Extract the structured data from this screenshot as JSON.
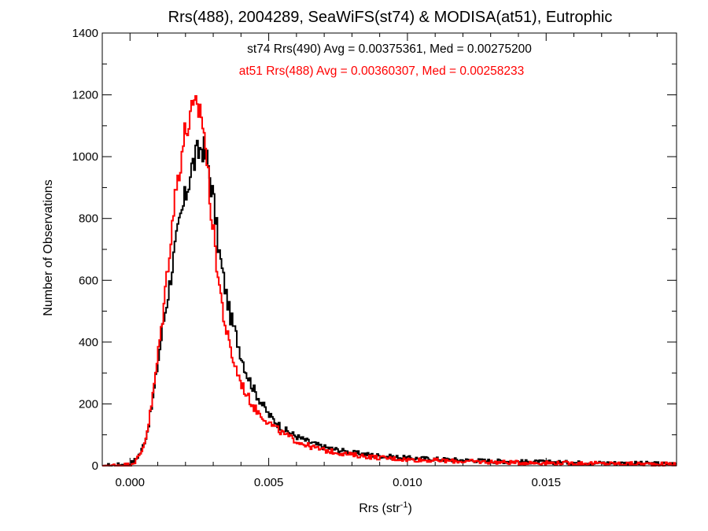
{
  "chart_data": {
    "type": "histogram",
    "title": "Rrs(488), 2004289, SeaWiFS(st74) & MODISA(at51), Eutrophic",
    "xlabel": {
      "base": "Rrs (str",
      "sup": "-1",
      "tail": ")"
    },
    "ylabel": "Number of Observations",
    "xlim": [
      -0.001,
      0.0197
    ],
    "ylim": [
      0,
      1400
    ],
    "x_ticks": [
      0.0,
      0.005,
      0.01,
      0.015
    ],
    "x_tick_labels": [
      "0.000",
      "0.005",
      "0.010",
      "0.015"
    ],
    "y_ticks": [
      0,
      200,
      400,
      600,
      800,
      1000,
      1200,
      1400
    ],
    "y_tick_labels": [
      "0",
      "200",
      "400",
      "600",
      "800",
      "1000",
      "1200",
      "1400"
    ],
    "x_minor_step": 0.001,
    "y_minor_step": 100,
    "grid": false,
    "annotations": [
      {
        "text": "st74 Rrs(490) Avg = 0.00375361, Med = 0.00275200",
        "color": "#000000"
      },
      {
        "text": "at51 Rrs(488) Avg = 0.00360307, Med = 0.00258233",
        "color": "#ff0000"
      }
    ],
    "bin_width": 5e-05,
    "series": [
      {
        "color": "#000000",
        "profile_x": [
          -0.001,
          0.0,
          0.0002,
          0.0004,
          0.0006,
          0.0008,
          0.001,
          0.0012,
          0.0014,
          0.0016,
          0.0018,
          0.002,
          0.0022,
          0.0024,
          0.0025,
          0.0026,
          0.0027,
          0.0028,
          0.003,
          0.0032,
          0.0034,
          0.0036,
          0.0038,
          0.004,
          0.0042,
          0.0045,
          0.005,
          0.0055,
          0.006,
          0.0065,
          0.007,
          0.008,
          0.009,
          0.01,
          0.012,
          0.014,
          0.016,
          0.018,
          0.0197
        ],
        "profile_y": [
          0,
          5,
          20,
          45,
          100,
          200,
          330,
          460,
          570,
          690,
          790,
          870,
          960,
          1000,
          1020,
          1040,
          1010,
          980,
          870,
          700,
          590,
          490,
          430,
          360,
          300,
          240,
          165,
          120,
          95,
          75,
          60,
          42,
          32,
          25,
          18,
          13,
          10,
          8,
          6
        ]
      },
      {
        "color": "#ff0000",
        "profile_x": [
          -0.001,
          0.0,
          0.0002,
          0.0004,
          0.0006,
          0.0008,
          0.001,
          0.0012,
          0.0014,
          0.0016,
          0.0018,
          0.002,
          0.0022,
          0.0024,
          0.0025,
          0.0026,
          0.0027,
          0.0028,
          0.003,
          0.0032,
          0.0034,
          0.0036,
          0.0038,
          0.004,
          0.0042,
          0.0045,
          0.005,
          0.0055,
          0.006,
          0.0065,
          0.007,
          0.008,
          0.009,
          0.01,
          0.012,
          0.014,
          0.016,
          0.018,
          0.0197
        ],
        "profile_y": [
          0,
          3,
          15,
          40,
          100,
          210,
          350,
          500,
          680,
          850,
          980,
          1080,
          1130,
          1150,
          1160,
          1130,
          1060,
          950,
          760,
          600,
          470,
          380,
          320,
          270,
          230,
          185,
          140,
          105,
          80,
          62,
          50,
          35,
          26,
          20,
          14,
          10,
          8,
          6,
          5
        ]
      }
    ]
  }
}
